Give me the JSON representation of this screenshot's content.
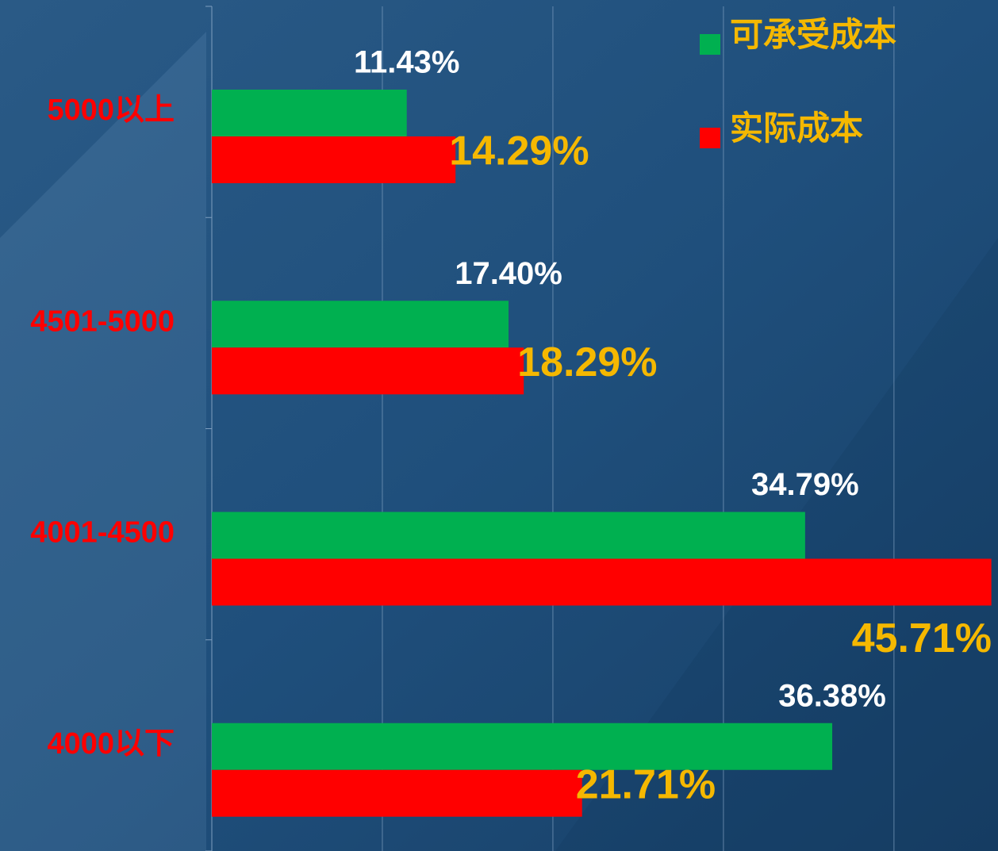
{
  "chart_data": {
    "type": "bar",
    "orientation": "horizontal",
    "categories": [
      "5000以上",
      "4501-5000",
      "4001-4500",
      "4000以下"
    ],
    "series": [
      {
        "name": "可承受成本",
        "color": "#00b050",
        "values": [
          11.43,
          17.4,
          34.79,
          36.38
        ],
        "value_labels": [
          "11.43%",
          "17.40%",
          "34.79%",
          "36.38%"
        ]
      },
      {
        "name": "实际成本",
        "color": "#ff0000",
        "values": [
          14.29,
          18.29,
          45.71,
          21.71
        ],
        "value_labels": [
          "14.29%",
          "18.29%",
          "45.71%",
          "21.71%"
        ]
      }
    ],
    "xlim": [
      0,
      46.1
    ],
    "xticks": [
      0,
      10,
      20,
      30,
      40
    ],
    "grid": true,
    "legend": "top-right"
  }
}
